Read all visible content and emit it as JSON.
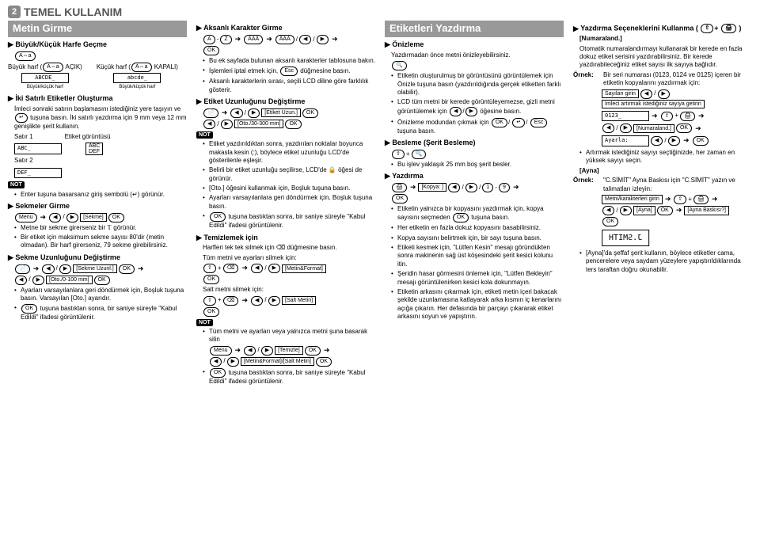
{
  "main": {
    "num": "2",
    "title": "TEMEL KULLANIM"
  },
  "colA": {
    "bar": "Metin Girme",
    "s1_title": "Büyük/Küçük Harfe Geçme",
    "key_caps": "A⇔a",
    "upper_label": "Büyük harf",
    "upper_state": "AÇIK)",
    "lower_label": "Küçük harf",
    "lower_state": "KAPALI)",
    "lcd_upper": "ABCDE_",
    "lcd_lower": "abcde_",
    "lcd_caption": "Büyük/küçük harf",
    "s2_title": "İki Satırlı Etiketler Oluşturma",
    "s2_p1": "İmleci sonraki satırın başlamasını istediğiniz yere taşıyın ve",
    "s2_p2": "tuşuna basın. İki satırlı yazdırma için 9 mm veya 12 mm genişlikte şerit kullanın.",
    "row1_label": "Satır 1",
    "row2_label": "Satır 2",
    "etiket_label": "Etiket görüntüsü",
    "lcd_row1": "ABC_",
    "lcd_row2": "DEF_",
    "etiket_box1": "ABC",
    "etiket_box2": "DEF",
    "not": "NOT",
    "s2_note": "Enter tuşuna basarsanız giriş sembolü (↵) görünür.",
    "s3_title": "Sekmeler Girme",
    "menu_key": "Menu",
    "ok_key": "OK",
    "sekme_label": "[Sekme]",
    "s3_b1": "Metne bir sekme girerseniz bir 𝕋 görünür.",
    "s3_b2": "Bir etiket için maksimum sekme sayısı 80'dir (metin olmadan). Bir harf girerseniz, 79 sekme girebilirsiniz.",
    "s4_title": "Sekme Uzunluğunu Değiştirme",
    "s4_l1": "[Sekme Uzunl.]",
    "s4_l2": "[Oto./0-100 mm]",
    "s4_b1": "Ayarları varsayılanlara geri döndürmek için, Boşluk tuşuna basın. Varsayılan [Oto.] ayarıdır.",
    "s4_b2a": "tuşuna bastıktan sonra, bir saniye süreyle",
    "s4_b2b": "\"Kabul Edildi\" ifadesi görüntülenir."
  },
  "colB": {
    "s1_title": "Aksanlı Karakter Girme",
    "a_key": "A",
    "z_key": "Z",
    "aaa_key": "ÂÁÀ",
    "b1": "Bu ek sayfada bulunan aksanlı karakterler tablosuna bakın.",
    "b2a": "İşlemleri iptal etmek için,",
    "esc_key": "Esc",
    "b2b": "düğmesine basın.",
    "b3": "Aksanlı karakterlerin sırası, seçili LCD diline göre farklılık gösterir.",
    "s2_title": "Etiket Uzunluğunu Değiştirme",
    "s2_l1": "[Etiket Uzun.]",
    "s2_l2": "[Oto./30-300 mm]",
    "not": "NOT",
    "s2_n1": "Etiket yazdırıldıktan sonra, yazdırılan noktalar boyunca makasla kesin (:), böylece etiket uzunluğu LCD'de gösterilenle eşleşir.",
    "s2_n2": "Belirli bir etiket uzunluğu seçilirse, LCD'de 🔒 öğesi de görünür.",
    "s2_n3": "[Oto.] öğesini kullanmak için, Boşluk tuşuna basın.",
    "s2_n4": "Ayarları varsayılanlara geri döndürmek için, Boşluk tuşuna basın.",
    "s2_n5a": "tuşuna bastıktan sonra, bir saniye süreyle",
    "s2_n5b": "\"Kabul Edildi\" ifadesi görüntülenir.",
    "s3_title": "Temizlemek için",
    "s3_p1": "Harfleri tek tek silmek için ⌫ düğmesine basın.",
    "s3_p2": "Tüm metni ve ayarları silmek için:",
    "mf_label": "[Metin&Format]",
    "s3_p3": "Salt metni silmek için:",
    "sm_label": "[Salt Metin]",
    "s3_n1": "Tüm metni ve ayarları veya yalnızca metni şuna basarak silin",
    "tem_label": "[Temizle]",
    "mfsm_label": "[Metin&Format]/[Salt Metin]",
    "s3_n2": "tuşuna bastıktan sonra, bir saniye süreyle \"Kabul Edildi\" ifadesi görüntülenir."
  },
  "colC": {
    "bar": "Etiketleri Yazdırma",
    "s1_title": "Önizleme",
    "s1_p1": "Yazdırmadan önce metni önizleyebilirsiniz.",
    "s1_b1": "Etiketin oluşturulmuş bir görüntüsünü görüntülemek için Önizle tuşuna basın (yazdırıldığında gerçek etiketten farklı olabilir).",
    "s1_b2a": "LCD tüm metni bir kerede görüntüleyemezse, gizli metni görüntülemek için",
    "s1_b2b": "öğesine basın.",
    "s1_b3a": "Önizleme modundan çıkmak için",
    "s1_b3b": "tuşuna basın.",
    "s2_title": "Besleme (Şerit Besleme)",
    "s2_b1": "Bu işlev yaklaşık 25 mm boş şerit besler.",
    "s3_title": "Yazdırma",
    "kopya_label": "[Kopya: ]",
    "s3_b1": "Etiketin yalnızca bir kopyasını yazdırmak için, kopya sayısını seçmeden",
    "s3_b1b": "tuşuna basın.",
    "s3_b2": "Her etiketin en fazla dokuz kopyasını basabilirsiniz.",
    "s3_b3": "Kopya sayısını belirtmek için, bir sayı tuşuna basın.",
    "s3_b4": "Etiketi kesmek için, \"Lütfen Kesin\" mesajı göründükten sonra makinenin sağ üst köşesindeki şerit kesici kolunu itin.",
    "s3_b5": "Şeridin hasar görmesini önlemek için, \"Lütfen Bekleyin\" mesajı görüntülenirken kesici kola dokunmayın.",
    "s3_b6": "Etiketin arkasını çıkarmak için, etiketi metin içeri bakacak şekilde uzunlamasına katlayarak arka kısmın iç kenarlarını açığa çıkarın. Her defasında bir parçayı çıkararak etiket arkasını soyun ve yapıştırın."
  },
  "colD": {
    "s1_title_a": "Yazdırma Seçeneklerini Kullanma (",
    "s1_title_b": ")",
    "num_label": "[Numaraland.]",
    "s1_p1": "Otomatik numaralandırmayı kullanarak bir kerede en fazla dokuz etiket serisini yazdırabilirsiniz. Bir kerede yazdırabileceğiniz etiket sayısı ilk sayıya bağlıdır.",
    "ornek_label": "Örnek:",
    "s1_ornek": "Bir seri numarası (0123, 0124 ve 0125) içeren bir etiketin kopyalarını yazdırmak için:",
    "s1_step1a": "Sayıları girin",
    "s1_step1b": "İmleci artırmak istediğiniz sayıya getirin",
    "lcd_num": "0123_",
    "s1_step2": "[Numaraland.]",
    "lcd_ayar": "Ayarla:",
    "s1_b1": "Artırmak istediğiniz sayıyı seçtiğinizde, her zaman en yüksek sayıyı seçin.",
    "ayna_label": "[Ayna]",
    "s2_ornek": "\"C.SİMİT\" Ayna Baskısı için \"C.SİMİT\" yazın ve talimatları izleyin:",
    "s2_step1": "Metni/karakterleri girin",
    "ayna_l2": "[Ayna]",
    "ayna_b_label": "[Ayna Baskısı?]",
    "mirror_text": "J.SMITH",
    "s2_b1": "[Ayna]'da şeffaf şerit kullanın, böylece etiketler cama, pencerelere veya saydam yüzeylere yapıştırıldıklarında ters taraftan doğru okunabilir."
  }
}
